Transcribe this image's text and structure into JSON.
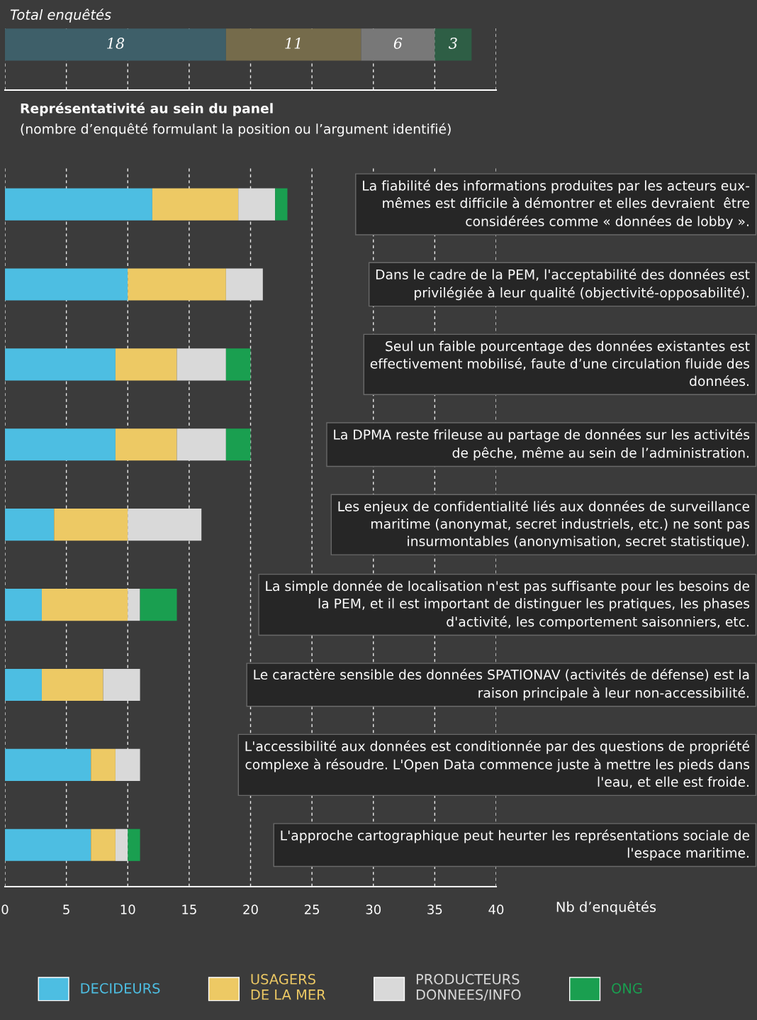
{
  "chart_data": [
    {
      "type": "bar",
      "title": "Total enquêtés",
      "orientation": "horizontal",
      "stacked": true,
      "categories": [
        null
      ],
      "series": [
        {
          "color": "#3e5f69",
          "values": [
            18
          ]
        },
        {
          "color": "#756b4b",
          "values": [
            11
          ]
        },
        {
          "color": "#787878",
          "values": [
            6
          ]
        },
        {
          "color": "#2e5e45",
          "values": [
            3
          ]
        }
      ],
      "data_labels": true,
      "xlim": [
        0,
        40
      ],
      "xticks": [
        0,
        5,
        10,
        15,
        20,
        25,
        30,
        35,
        40
      ],
      "tick_labels": false,
      "grid": "x"
    },
    {
      "type": "bar",
      "title": "Représentativité au sein du panel",
      "subtitle": "(nombre d’enquêté formulant la position ou l’argument identifié)",
      "xlabel": "Nb d’enquêtés",
      "orientation": "horizontal",
      "stacked": true,
      "categories": [
        "La fiabilité des informations produites par les acteurs eux-\nmêmes est difficile à démontrer et elles devraient  être\nconsidérées comme « données de lobby ».",
        "Dans le cadre de la PEM, l'acceptabilité des données est\nprivilégiée à leur qualité (objectivité-opposabilité).",
        "Seul un faible pourcentage des données existantes est\neffectivement mobilisé, faute d’une circulation fluide des\ndonnées.",
        "La DPMA reste frileuse au partage de données sur les activités\nde pêche, même au sein de l’administration.",
        "Les enjeux de confidentialité liés aux données de surveillance\nmaritime (anonymat, secret industriels, etc.) ne sont pas\ninsurmontables (anonymisation, secret statistique).",
        "La simple donnée de localisation n'est pas suffisante pour les besoins de\nla PEM, et il est important de distinguer les pratiques, les phases\nd'activité, les comportement saisonniers, etc.",
        "Le caractère sensible des données SPATIONAV (activités de défense) est la\nraison principale à leur non-accessibilité.",
        "L'accessibilité aux données est conditionnée par des questions de propriété\ncomplexe à résoudre. L'Open Data commence juste à mettre les pieds dans\nl'eau, et elle est froide.",
        "L'approche cartographique peut heurter les représentations sociale de\nl'espace maritime."
      ],
      "series": [
        {
          "name": "DECIDEURS",
          "color": "#4dbee2",
          "values": [
            12,
            10,
            9,
            9,
            4,
            3,
            3,
            7,
            7
          ]
        },
        {
          "name": "USAGERS\nDE LA MER",
          "color": "#edc964",
          "values": [
            7,
            8,
            5,
            5,
            6,
            7,
            5,
            2,
            2
          ]
        },
        {
          "name": "PRODUCTEURS\nDONNEES/INFO",
          "color": "#d9d9d9",
          "values": [
            3,
            3,
            4,
            4,
            6,
            1,
            3,
            2,
            1
          ]
        },
        {
          "name": "ONG",
          "color": "#1a9f50",
          "values": [
            1,
            0,
            2,
            2,
            0,
            3,
            0,
            0,
            1
          ]
        }
      ],
      "xlim": [
        0,
        40
      ],
      "xticks": [
        0,
        5,
        10,
        15,
        20,
        25,
        30,
        35,
        40
      ],
      "grid": "x",
      "legend": "bottom"
    }
  ]
}
